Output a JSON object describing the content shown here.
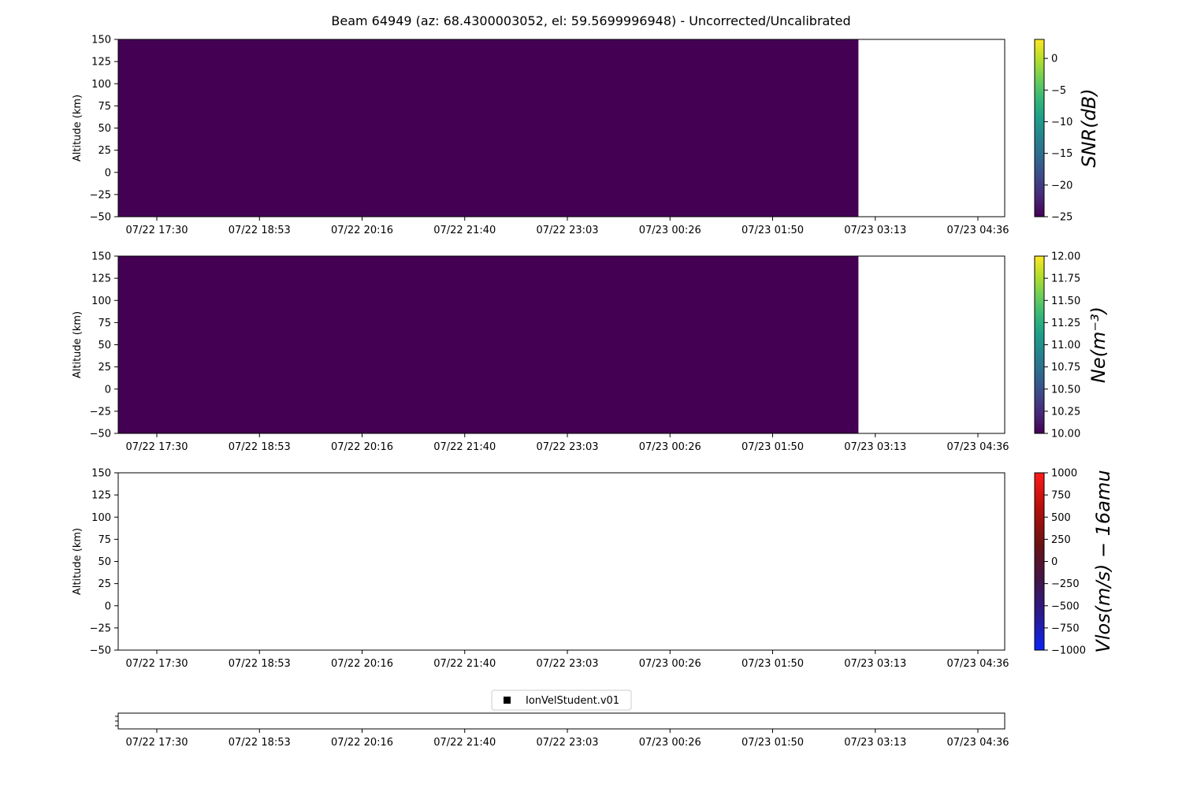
{
  "title": "Beam 64949 (az: 68.4300003052, el: 59.5699996948) - Uncorrected/Uncalibrated",
  "time_tick_labels": [
    "07/22 17:30",
    "07/22 18:53",
    "07/22 20:16",
    "07/22 21:40",
    "07/22 23:03",
    "07/23 00:26",
    "07/23 01:50",
    "07/23 03:13",
    "07/23 04:36"
  ],
  "chart_data": [
    {
      "type": "heatmap",
      "name": "snr",
      "ylabel": "Altitude (km)",
      "ylim": [
        -50,
        150
      ],
      "yticks": [
        150,
        125,
        100,
        75,
        50,
        25,
        0,
        -25,
        -50
      ],
      "filled_color": "#440154",
      "fill_end_fraction": 0.835,
      "colorbar": {
        "label": "SNR(dB)",
        "colormap": "viridis",
        "range": [
          -25,
          3
        ],
        "ticks": [
          0,
          -5,
          -10,
          -15,
          -20,
          -25
        ]
      }
    },
    {
      "type": "heatmap",
      "name": "ne",
      "ylabel": "Altitude (km)",
      "ylim": [
        -50,
        150
      ],
      "yticks": [
        150,
        125,
        100,
        75,
        50,
        25,
        0,
        -25,
        -50
      ],
      "filled_color": "#440154",
      "fill_end_fraction": 0.835,
      "colorbar": {
        "label": "Ne(m⁻³)",
        "colormap": "viridis",
        "range": [
          10,
          12
        ],
        "ticks": [
          "12.00",
          "11.75",
          "11.50",
          "11.25",
          "11.00",
          "10.75",
          "10.50",
          "10.25",
          "10.00"
        ]
      }
    },
    {
      "type": "heatmap",
      "name": "vlos",
      "ylabel": "Altitude (km)",
      "ylim": [
        -50,
        150
      ],
      "yticks": [
        150,
        125,
        100,
        75,
        50,
        25,
        0,
        -25,
        -50
      ],
      "filled_color": null,
      "fill_end_fraction": 0,
      "colorbar": {
        "label": "Vlos(m/s) − 16amu",
        "colormap": "blue-red",
        "range": [
          -1000,
          1000
        ],
        "ticks": [
          "1000",
          "750",
          "500",
          "250",
          "0",
          "−250",
          "−500",
          "−750",
          "−1000"
        ]
      }
    },
    {
      "type": "scatter",
      "name": "status",
      "legend": [
        "IonVelStudent.v01"
      ],
      "legend_marker_color": "#000000"
    }
  ],
  "colors": {
    "viridis_stops": [
      "#440154",
      "#482878",
      "#3e4989",
      "#31688e",
      "#26828e",
      "#1f9e89",
      "#35b779",
      "#6ece58",
      "#b5de2b",
      "#fde725"
    ],
    "bwr_stops": [
      "#0a24f7",
      "#2a1a8f",
      "#431545",
      "#6b1214",
      "#b50f0a",
      "#ff1a1a"
    ]
  }
}
